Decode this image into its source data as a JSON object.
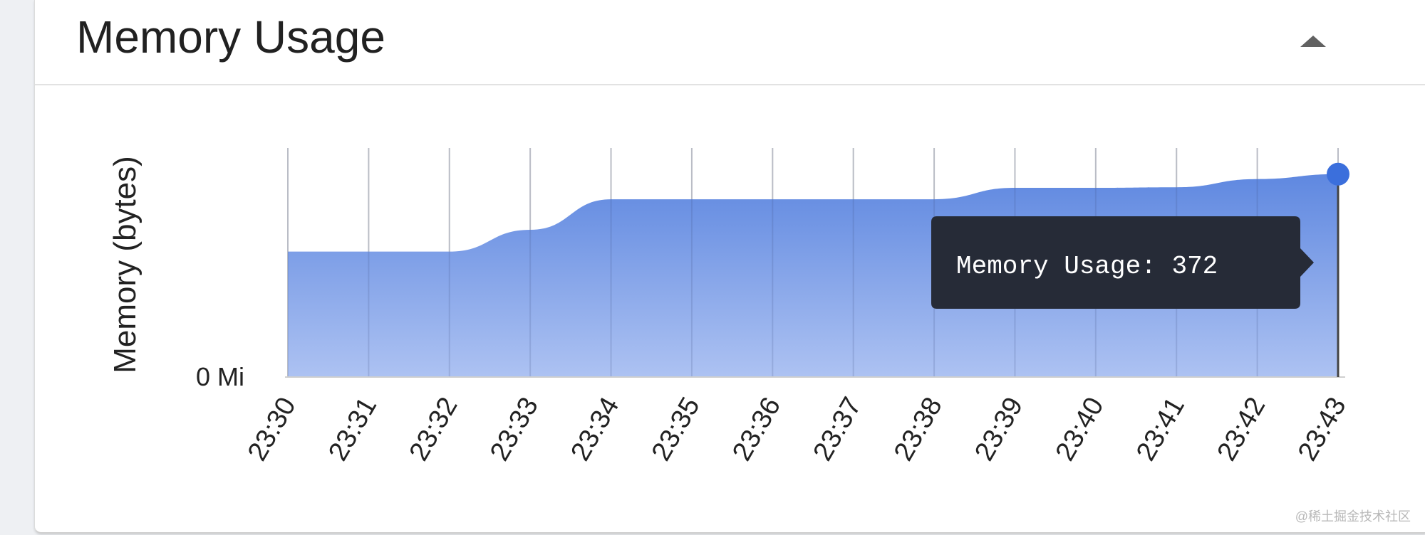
{
  "card": {
    "title": "Memory Usage",
    "collapse_icon": "triangle-up-icon"
  },
  "tooltip": {
    "label": "Memory Usage",
    "separator": ": ",
    "value": "372"
  },
  "watermark": "@稀土掘金技术社区",
  "colors": {
    "area_top": "#5f88e0",
    "area_bottom": "#adc2f2",
    "marker": "#3b6fdc",
    "tooltip_bg": "#262b37",
    "grid": "#d6d6d6"
  },
  "chart_data": {
    "type": "area",
    "title": "Memory Usage",
    "ylabel": "Memory (bytes)",
    "xlabel": "",
    "y_tick_label": "0 Mi",
    "ylim": [
      0,
      420
    ],
    "grid": true,
    "categories": [
      "23:30",
      "23:31",
      "23:32",
      "23:33",
      "23:34",
      "23:35",
      "23:36",
      "23:37",
      "23:38",
      "23:39",
      "23:40",
      "23:41",
      "23:42",
      "23:43"
    ],
    "values": [
      230,
      230,
      230,
      270,
      326,
      326,
      326,
      326,
      326,
      347,
      347,
      348,
      363,
      372
    ],
    "highlight_index": 13
  }
}
